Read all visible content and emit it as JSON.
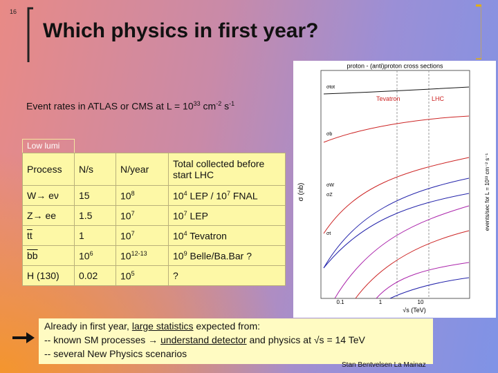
{
  "slide_number": "16",
  "title": "Which physics in first year?",
  "event_rates": [
    {
      "text": "Event rates  in  ATLAS  or CMS at  L =  10"
    },
    {
      "sup": "33"
    },
    {
      "text": " cm"
    },
    {
      "sup": "-2"
    },
    {
      "text": " s"
    },
    {
      "sup": "-1"
    }
  ],
  "table_label": "Low lumi",
  "table": {
    "rows": [
      [
        [
          {
            "text": "Process"
          }
        ],
        [
          {
            "text": "N/s"
          }
        ],
        [
          {
            "text": "N/year"
          }
        ],
        [
          {
            "text": "Total collected before start LHC"
          }
        ]
      ],
      [
        [
          {
            "text": "W→ eν"
          }
        ],
        [
          {
            "text": "15"
          }
        ],
        [
          {
            "text": "10"
          },
          {
            "sup": "8"
          }
        ],
        [
          {
            "text": "10"
          },
          {
            "sup": "4"
          },
          {
            "text": " LEP / 10"
          },
          {
            "sup": "7"
          },
          {
            "text": " FNAL"
          }
        ]
      ],
      [
        [
          {
            "text": "Z→ ee"
          }
        ],
        [
          {
            "text": "1.5"
          }
        ],
        [
          {
            "text": "10"
          },
          {
            "sup": "7"
          }
        ],
        [
          {
            "text": "10"
          },
          {
            "sup": "7"
          },
          {
            "text": " LEP"
          }
        ]
      ],
      [
        [
          {
            "over": "tt"
          }
        ],
        [
          {
            "text": "1"
          }
        ],
        [
          {
            "text": "10"
          },
          {
            "sup": "7"
          }
        ],
        [
          {
            "text": "10"
          },
          {
            "sup": "4"
          },
          {
            "text": "  Tevatron"
          }
        ]
      ],
      [
        [
          {
            "over": "bb"
          }
        ],
        [
          {
            "text": "10"
          },
          {
            "sup": "6"
          }
        ],
        [
          {
            "text": "10"
          },
          {
            "sup": "12-13"
          }
        ],
        [
          {
            "text": "10"
          },
          {
            "sup": "9"
          },
          {
            "text": " Belle/Ba.Bar  ?"
          }
        ]
      ],
      [
        [
          {
            "text": "H (130)"
          }
        ],
        [
          {
            "text": "0.02"
          }
        ],
        [
          {
            "text": "10"
          },
          {
            "sup": "5"
          }
        ],
        [
          {
            "text": "?"
          }
        ]
      ]
    ]
  },
  "plot": {
    "title": "proton - (anti)proton cross sections",
    "y_label": "σ  (nb)",
    "x_label": "√s   (TeV)",
    "y2_label": "events/sec for L = 10³³ cm⁻² s⁻¹",
    "collider_labels": [
      "Tevatron",
      "LHC"
    ],
    "x_ticks": [
      "0.1",
      "1",
      "10"
    ],
    "curve_labels": [
      "σtot",
      "σb",
      "σW",
      "σZ",
      "σt"
    ]
  },
  "note": {
    "lines": [
      [
        {
          "text": "Already in first year,  "
        },
        {
          "u": "large statistics"
        },
        {
          "text": "  expected from:"
        }
      ],
      [
        {
          "text": " -- known SM processes  → "
        },
        {
          "u": "understand detector"
        },
        {
          "text": "  and  physics at √s = 14 TeV"
        }
      ],
      [
        {
          "text": " -- several New Physics scenarios"
        }
      ]
    ]
  },
  "footer": "Stan Bentvelsen La Mainaz"
}
